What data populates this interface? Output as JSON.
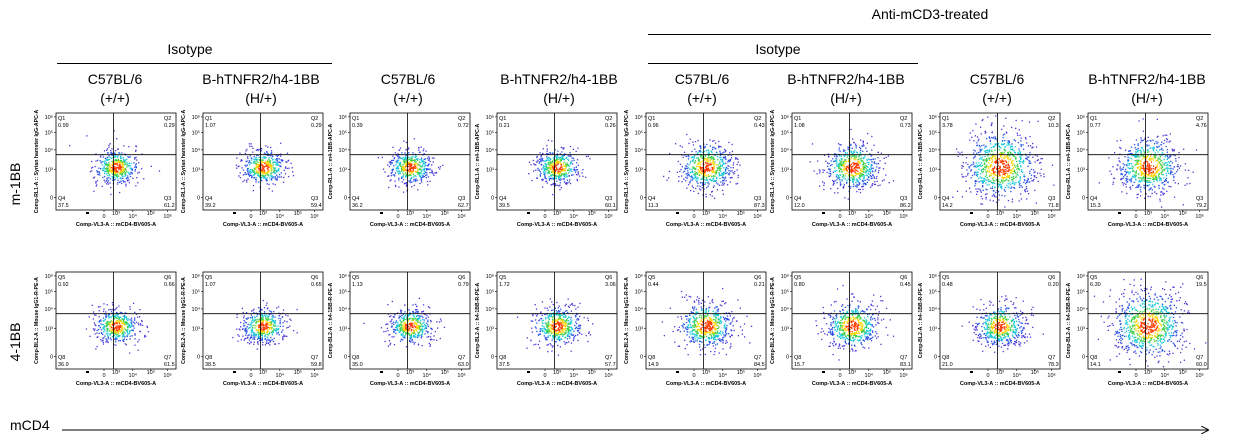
{
  "header": {
    "treatment_label": "Anti-mCD3-treated",
    "isotype_label_1": "Isotype",
    "isotype_label_2": "Isotype"
  },
  "columns": [
    {
      "strain": "C57BL/6",
      "genotype": "(+/+)"
    },
    {
      "strain": "B-hTNFR2/h4-1BB",
      "genotype": "(H/+)"
    },
    {
      "strain": "C57BL/6",
      "genotype": "(+/+)"
    },
    {
      "strain": "B-hTNFR2/h4-1BB",
      "genotype": "(H/+)"
    },
    {
      "strain": "C57BL/6",
      "genotype": "(+/+)"
    },
    {
      "strain": "B-hTNFR2/h4-1BB",
      "genotype": "(H/+)"
    },
    {
      "strain": "C57BL/6",
      "genotype": "(+/+)"
    },
    {
      "strain": "B-hTNFR2/h4-1BB",
      "genotype": "(H/+)"
    }
  ],
  "rows": [
    {
      "label": "m-1BB"
    },
    {
      "label": "4-1BB"
    }
  ],
  "x_axis_label": "mCD4",
  "chart_data": [
    {
      "type": "scatter",
      "row_label": "m-1BB",
      "xlabel": "Comp-VL3-A :: mCD4-BV605-A",
      "x_ticks": [
        "0",
        "10³",
        "10⁴",
        "10⁵",
        "10⁶"
      ],
      "y_ticks": [
        "0",
        "10³",
        "10⁴",
        "10⁵",
        "10⁶"
      ],
      "quadrant_names": [
        "Q1",
        "Q2",
        "Q3",
        "Q4"
      ],
      "panels": [
        {
          "ylabel": "Comp-RL1-A :: Syrian hamster IgG-APC-A",
          "q1": "0.99",
          "q2": "0.29",
          "q3": "61.2",
          "q4": "37.5",
          "density": 0.3
        },
        {
          "ylabel": "Comp-RL1-A :: Syrian hamster IgG-APC-A",
          "q1": "1.07",
          "q2": "0.29",
          "q3": "59.4",
          "q4": "39.2",
          "density": 0.3
        },
        {
          "ylabel": "Comp-RL1-A :: m4-1BB-APC-A",
          "q1": "0.39",
          "q2": "0.72",
          "q3": "62.7",
          "q4": "36.2",
          "density": 0.3
        },
        {
          "ylabel": "Comp-RL1-A :: m4-1BB-APC-A",
          "q1": "0.21",
          "q2": "0.26",
          "q3": "60.1",
          "q4": "39.5",
          "density": 0.3
        },
        {
          "ylabel": "Comp-RL1-A :: Syrian hamster IgG-APC-A",
          "q1": "0.96",
          "q2": "0.43",
          "q3": "87.3",
          "q4": "11.3",
          "density": 0.55
        },
        {
          "ylabel": "Comp-RL1-A :: Syrian hamster IgG-APC-A",
          "q1": "1.08",
          "q2": "0.73",
          "q3": "86.2",
          "q4": "12.0",
          "density": 0.55
        },
        {
          "ylabel": "Comp-RL1-A :: m4-1BB-APC-A",
          "q1": "3.78",
          "q2": "10.3",
          "q3": "71.8",
          "q4": "14.2",
          "density": 1.0
        },
        {
          "ylabel": "Comp-RL1-A :: m4-1BB-APC-A",
          "q1": "0.77",
          "q2": "4.76",
          "q3": "79.2",
          "q4": "15.3",
          "density": 0.75
        }
      ]
    },
    {
      "type": "scatter",
      "row_label": "4-1BB",
      "xlabel": "Comp-VL3-A :: mCD4-BV605-A",
      "x_ticks": [
        "0",
        "10³",
        "10⁴",
        "10⁵",
        "10⁶"
      ],
      "y_ticks": [
        "0",
        "10³",
        "10⁴",
        "10⁵",
        "10⁶"
      ],
      "quadrant_names": [
        "Q5",
        "Q6",
        "Q7",
        "Q8"
      ],
      "panels": [
        {
          "ylabel": "Comp-BL2-A :: Mouse IgG1-R-PE-A",
          "q1": "0.92",
          "q2": "0.66",
          "q3": "61.5",
          "q4": "36.9",
          "density": 0.3
        },
        {
          "ylabel": "Comp-BL2-A :: Mouse IgG1-R-PE-A",
          "q1": "1.07",
          "q2": "0.65",
          "q3": "59.8",
          "q4": "38.5",
          "density": 0.3
        },
        {
          "ylabel": "Comp-BL2-A :: h4-1BB-R-PE-A",
          "q1": "1.13",
          "q2": "0.79",
          "q3": "63.0",
          "q4": "35.0",
          "density": 0.3
        },
        {
          "ylabel": "Comp-BL2-A :: h4-1BB-R-PE-A",
          "q1": "1.72",
          "q2": "3.06",
          "q3": "57.7",
          "q4": "37.5",
          "density": 0.4
        },
        {
          "ylabel": "Comp-BL2-A :: Mouse IgG1-R-PE-A",
          "q1": "0.44",
          "q2": "0.21",
          "q3": "84.5",
          "q4": "14.9",
          "density": 0.55
        },
        {
          "ylabel": "Comp-BL2-A :: Mouse IgG1-R-PE-A",
          "q1": "0.80",
          "q2": "0.45",
          "q3": "83.1",
          "q4": "15.7",
          "density": 0.55
        },
        {
          "ylabel": "Comp-BL2-A :: h4-1BB-R-PE-A",
          "q1": "0.48",
          "q2": "0.20",
          "q3": "78.3",
          "q4": "21.0",
          "density": 0.45
        },
        {
          "ylabel": "Comp-BL2-A :: h4-1BB-R-PE-A",
          "q1": "6.30",
          "q2": "19.5",
          "q3": "60.0",
          "q4": "14.1",
          "density": 1.0
        }
      ]
    }
  ]
}
